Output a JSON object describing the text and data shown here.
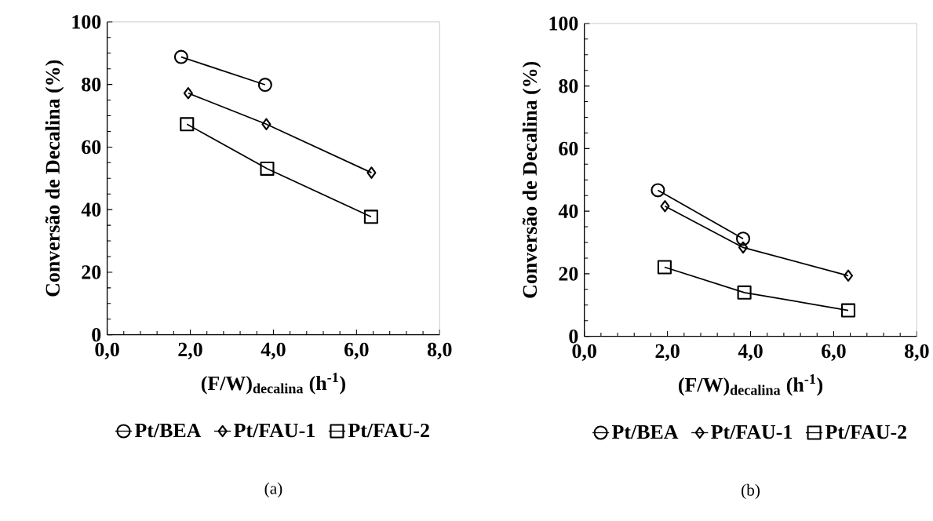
{
  "chart_data": [
    {
      "type": "line",
      "xlabel": "(F/W)$_{decalina}$ (h$^{-1}$)",
      "ylabel": "Conversão de Decalina (%)",
      "xlim": [
        0,
        8
      ],
      "xticks": [
        {
          "value": 0,
          "label": "0,0"
        },
        {
          "value": 2,
          "label": "2,0"
        },
        {
          "value": 4,
          "label": "4,0"
        },
        {
          "value": 6,
          "label": "6,0"
        },
        {
          "value": 8,
          "label": "8,0"
        }
      ],
      "ylim": [
        0,
        100
      ],
      "yticks": [
        0,
        20,
        40,
        60,
        80,
        100
      ],
      "legend": "bottom",
      "grid": false,
      "line_style": "solid",
      "annotations": [
        "(a)"
      ],
      "series": [
        {
          "name": "Pt/BEA",
          "color": "#000000",
          "marker": "circle",
          "x": [
            1.78,
            3.8
          ],
          "values": [
            88.8,
            79.9
          ]
        },
        {
          "name": "Pt/FAU-1",
          "color": "#000000",
          "marker": "diamond",
          "x": [
            1.95,
            3.83,
            6.36
          ],
          "values": [
            77.2,
            67.3,
            51.8
          ]
        },
        {
          "name": "Pt/FAU-2",
          "color": "#000000",
          "marker": "square",
          "x": [
            1.92,
            3.85,
            6.35
          ],
          "values": [
            67.3,
            53.1,
            37.7
          ]
        }
      ]
    },
    {
      "type": "line",
      "xlabel": "(F/W)$_{decalina}$ (h$^{-1}$)",
      "ylabel": "Conversão de Decalina (%)",
      "xlim": [
        0,
        8
      ],
      "xticks": [
        {
          "value": 0,
          "label": "0,0"
        },
        {
          "value": 2,
          "label": "2,0"
        },
        {
          "value": 4,
          "label": "4,0"
        },
        {
          "value": 6,
          "label": "6,0"
        },
        {
          "value": 8,
          "label": "8,0"
        }
      ],
      "ylim": [
        0,
        100
      ],
      "yticks": [
        0,
        20,
        40,
        60,
        80,
        100
      ],
      "legend": "bottom",
      "grid": false,
      "line_style": "solid",
      "annotations": [
        "(b)"
      ],
      "series": [
        {
          "name": "Pt/BEA",
          "color": "#000000",
          "marker": "circle",
          "x": [
            1.77,
            3.82
          ],
          "values": [
            46.7,
            31.2
          ]
        },
        {
          "name": "Pt/FAU-1",
          "color": "#000000",
          "marker": "diamond",
          "x": [
            1.94,
            3.82,
            6.35
          ],
          "values": [
            41.6,
            28.4,
            19.4
          ]
        },
        {
          "name": "Pt/FAU-2",
          "color": "#000000",
          "marker": "square",
          "x": [
            1.93,
            3.85,
            6.35
          ],
          "values": [
            22.1,
            14.0,
            8.3
          ]
        }
      ]
    }
  ]
}
